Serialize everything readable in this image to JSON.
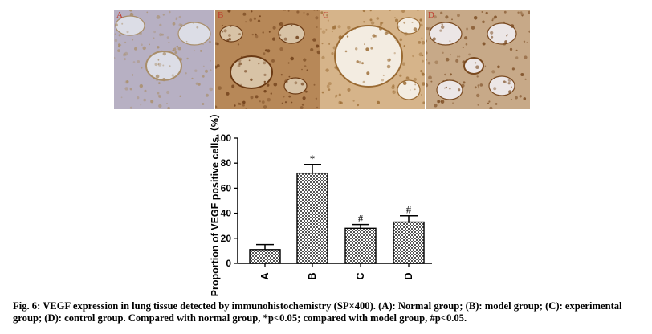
{
  "panels": [
    {
      "letter": "A",
      "bg": "#dcdde6",
      "tissue": "#b7b0c3",
      "stain": "#a98e6a"
    },
    {
      "letter": "B",
      "bg": "#d8c3a6",
      "tissue": "#b78858",
      "stain": "#6b3a14"
    },
    {
      "letter": "C",
      "bg": "#f3ece1",
      "tissue": "#d6b48a",
      "stain": "#9a6a32"
    },
    {
      "letter": "D",
      "bg": "#ece6e6",
      "tissue": "#c7a988",
      "stain": "#7a4a20"
    }
  ],
  "chart_data": {
    "type": "bar",
    "categories": [
      "A",
      "B",
      "C",
      "D"
    ],
    "values": [
      11,
      72,
      28,
      33
    ],
    "errors": [
      4,
      7,
      3,
      5
    ],
    "annotations": [
      "",
      "*",
      "#",
      "#"
    ],
    "ylabel": "Proportion of VEGF positive cells（%）",
    "xlabel": "",
    "ylim": [
      0,
      100
    ],
    "yticks": [
      0,
      20,
      40,
      60,
      80,
      100
    ],
    "grid": false,
    "bar_pattern": "checkerboard"
  },
  "caption": "Fig. 6: VEGF expression in lung tissue detected by immunohistochemistry (SP×400). (A): Normal group; (B): model group; (C): experimental group; (D): control group. Compared with normal group, *p<0.05; compared with model group, #p<0.05."
}
